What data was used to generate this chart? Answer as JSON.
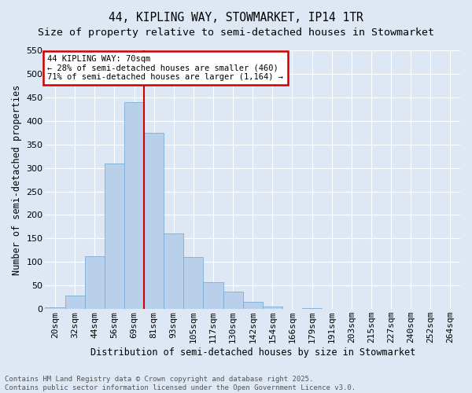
{
  "title": "44, KIPLING WAY, STOWMARKET, IP14 1TR",
  "subtitle": "Size of property relative to semi-detached houses in Stowmarket",
  "xlabel": "Distribution of semi-detached houses by size in Stowmarket",
  "ylabel": "Number of semi-detached properties",
  "categories": [
    "20sqm",
    "32sqm",
    "44sqm",
    "56sqm",
    "69sqm",
    "81sqm",
    "93sqm",
    "105sqm",
    "117sqm",
    "130sqm",
    "142sqm",
    "154sqm",
    "166sqm",
    "179sqm",
    "191sqm",
    "203sqm",
    "215sqm",
    "227sqm",
    "240sqm",
    "252sqm",
    "264sqm"
  ],
  "values": [
    3,
    28,
    113,
    310,
    440,
    375,
    160,
    110,
    57,
    37,
    15,
    6,
    0,
    2,
    0,
    0,
    1,
    0,
    0,
    0,
    0
  ],
  "bar_color": "#b8d0ea",
  "bar_edgecolor": "#7aadd4",
  "vline_color": "#cc0000",
  "annotation_line1": "44 KIPLING WAY: 70sqm",
  "annotation_line2": "← 28% of semi-detached houses are smaller (460)",
  "annotation_line3": "71% of semi-detached houses are larger (1,164) →",
  "annotation_box_color": "#cc0000",
  "ylim": [
    0,
    550
  ],
  "yticks": [
    0,
    50,
    100,
    150,
    200,
    250,
    300,
    350,
    400,
    450,
    500,
    550
  ],
  "footer_line1": "Contains HM Land Registry data © Crown copyright and database right 2025.",
  "footer_line2": "Contains public sector information licensed under the Open Government Licence v3.0.",
  "bg_color": "#dde8f4",
  "plot_bg_color": "#dde8f4",
  "title_fontsize": 10.5,
  "subtitle_fontsize": 9.5,
  "axis_label_fontsize": 8.5,
  "tick_fontsize": 8,
  "annotation_fontsize": 7.5,
  "footer_fontsize": 6.5
}
